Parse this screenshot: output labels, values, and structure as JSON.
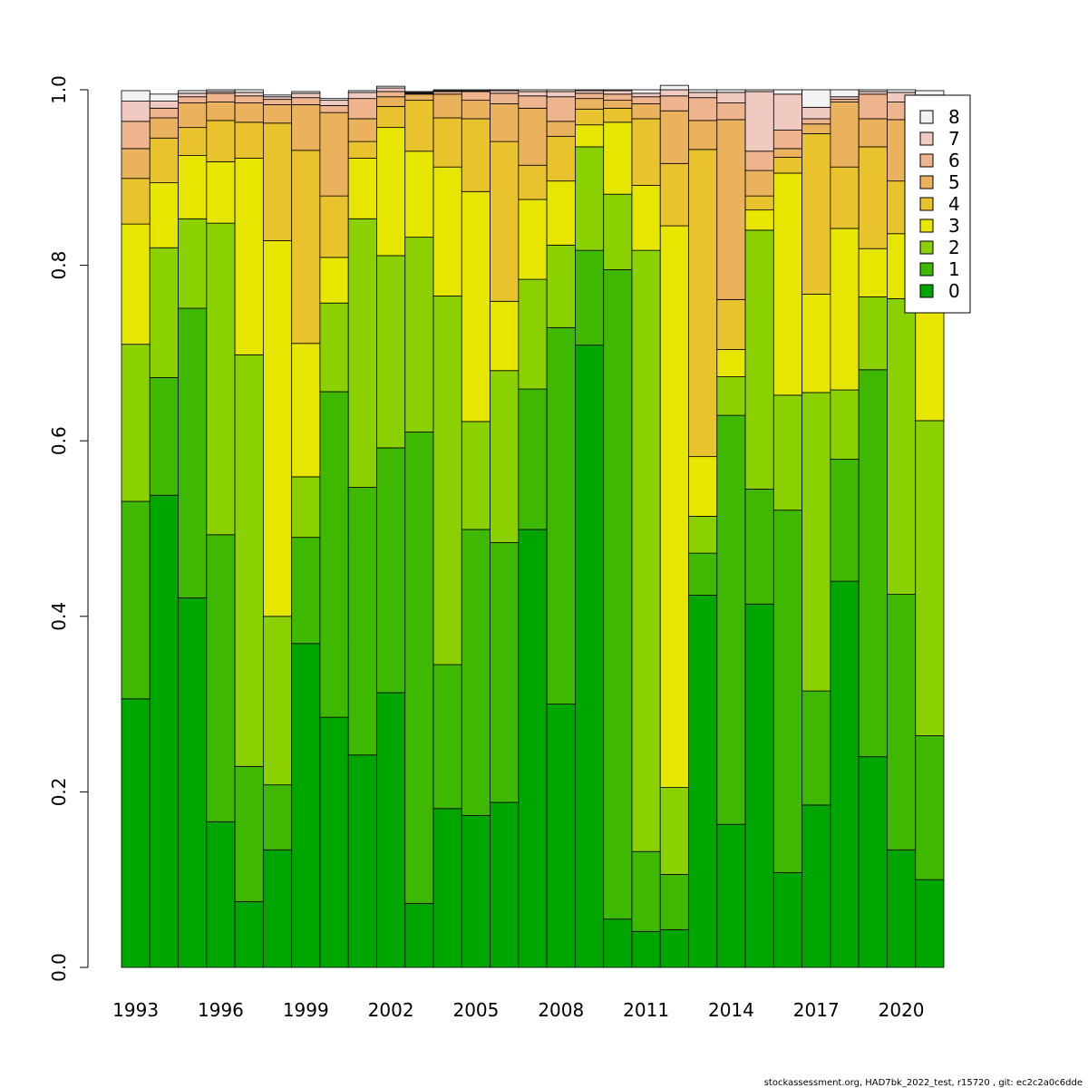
{
  "chart_data": {
    "type": "bar",
    "stacked": true,
    "title": "",
    "xlabel": "",
    "ylabel": "",
    "ylim": [
      0,
      1
    ],
    "y_ticks": [
      "0.0",
      "0.2",
      "0.4",
      "0.6",
      "0.8",
      "1.0"
    ],
    "x_tick_labels": [
      "1993",
      "1996",
      "1999",
      "2002",
      "2005",
      "2008",
      "2011",
      "2014",
      "2017",
      "2020"
    ],
    "categories": [
      1993,
      1994,
      1995,
      1996,
      1997,
      1998,
      1999,
      2000,
      2001,
      2002,
      2003,
      2004,
      2005,
      2006,
      2007,
      2008,
      2009,
      2010,
      2011,
      2012,
      2013,
      2014,
      2015,
      2016,
      2017,
      2018,
      2019,
      2020,
      2021
    ],
    "series": [
      {
        "name": "0",
        "color": "#00a600",
        "values": [
          0.306,
          0.538,
          0.421,
          0.166,
          0.075,
          0.134,
          0.369,
          0.285,
          0.242,
          0.313,
          0.073,
          0.181,
          0.173,
          0.188,
          0.499,
          0.3,
          0.709,
          0.055,
          0.041,
          0.043,
          0.424,
          0.163,
          0.414,
          0.108,
          0.185,
          0.44,
          0.24,
          0.134,
          0.1
        ]
      },
      {
        "name": "1",
        "color": "#3eb800",
        "values": [
          0.225,
          0.134,
          0.33,
          0.327,
          0.154,
          0.074,
          0.121,
          0.371,
          0.305,
          0.279,
          0.537,
          0.164,
          0.326,
          0.296,
          0.16,
          0.429,
          0.108,
          0.74,
          0.091,
          0.063,
          0.048,
          0.466,
          0.131,
          0.413,
          0.13,
          0.139,
          0.441,
          0.291,
          0.164
        ]
      },
      {
        "name": "2",
        "color": "#8bd000",
        "values": [
          0.179,
          0.148,
          0.102,
          0.355,
          0.469,
          0.192,
          0.069,
          0.101,
          0.306,
          0.219,
          0.222,
          0.42,
          0.123,
          0.196,
          0.125,
          0.094,
          0.118,
          0.086,
          0.685,
          0.099,
          0.042,
          0.044,
          0.295,
          0.131,
          0.34,
          0.079,
          0.083,
          0.337,
          0.359
        ]
      },
      {
        "name": "3",
        "color": "#e6e600",
        "values": [
          0.137,
          0.074,
          0.072,
          0.07,
          0.224,
          0.428,
          0.152,
          0.052,
          0.069,
          0.146,
          0.098,
          0.147,
          0.262,
          0.079,
          0.091,
          0.073,
          0.025,
          0.082,
          0.074,
          0.64,
          0.068,
          0.031,
          0.023,
          0.253,
          0.112,
          0.184,
          0.055,
          0.074,
          0.128
        ]
      },
      {
        "name": "4",
        "color": "#e8c32e",
        "values": [
          0.052,
          0.051,
          0.032,
          0.047,
          0.041,
          0.134,
          0.22,
          0.07,
          0.019,
          0.024,
          0.058,
          0.056,
          0.083,
          0.182,
          0.039,
          0.051,
          0.018,
          0.016,
          0.076,
          0.071,
          0.35,
          0.057,
          0.016,
          0.018,
          0.183,
          0.07,
          0.116,
          0.06,
          0.101
        ]
      },
      {
        "name": "5",
        "color": "#ebb25e",
        "values": [
          0.034,
          0.023,
          0.028,
          0.021,
          0.022,
          0.021,
          0.052,
          0.095,
          0.026,
          0.011,
          0.007,
          0.027,
          0.021,
          0.043,
          0.065,
          0.017,
          0.012,
          0.009,
          0.017,
          0.06,
          0.033,
          0.205,
          0.029,
          0.01,
          0.011,
          0.074,
          0.032,
          0.07,
          0.052
        ]
      },
      {
        "name": "6",
        "color": "#edb48e",
        "values": [
          0.031,
          0.011,
          0.007,
          0.01,
          0.008,
          0.006,
          0.008,
          0.008,
          0.023,
          0.006,
          0.001,
          0.003,
          0.01,
          0.012,
          0.014,
          0.028,
          0.006,
          0.007,
          0.008,
          0.017,
          0.026,
          0.019,
          0.022,
          0.021,
          0.006,
          0.003,
          0.028,
          0.02,
          0.05
        ]
      },
      {
        "name": "7",
        "color": "#f0c9c0",
        "values": [
          0.023,
          0.008,
          0.004,
          0.002,
          0.004,
          0.003,
          0.005,
          0.006,
          0.007,
          0.004,
          0.001,
          0.001,
          0.001,
          0.003,
          0.005,
          0.006,
          0.003,
          0.004,
          0.004,
          0.007,
          0.006,
          0.012,
          0.068,
          0.041,
          0.013,
          0.003,
          0.003,
          0.011,
          0.04
        ]
      },
      {
        "name": "8",
        "color": "#f2f2f2",
        "values": [
          0.012,
          0.008,
          0.003,
          0.002,
          0.003,
          0.002,
          0.002,
          0.002,
          0.002,
          0.002,
          0.001,
          0.001,
          0.001,
          0.001,
          0.002,
          0.002,
          0.001,
          0.001,
          0.004,
          0.005,
          0.003,
          0.003,
          0.002,
          0.005,
          0.02,
          0.008,
          0.002,
          0.003,
          0.005
        ]
      }
    ],
    "legend": {
      "position": "top-right",
      "order": [
        "8",
        "7",
        "6",
        "5",
        "4",
        "3",
        "2",
        "1",
        "0"
      ]
    }
  },
  "footer": {
    "text": "stockassessment.org, HAD7bk_2022_test, r15720 , git: ec2c2a0c6dde"
  }
}
